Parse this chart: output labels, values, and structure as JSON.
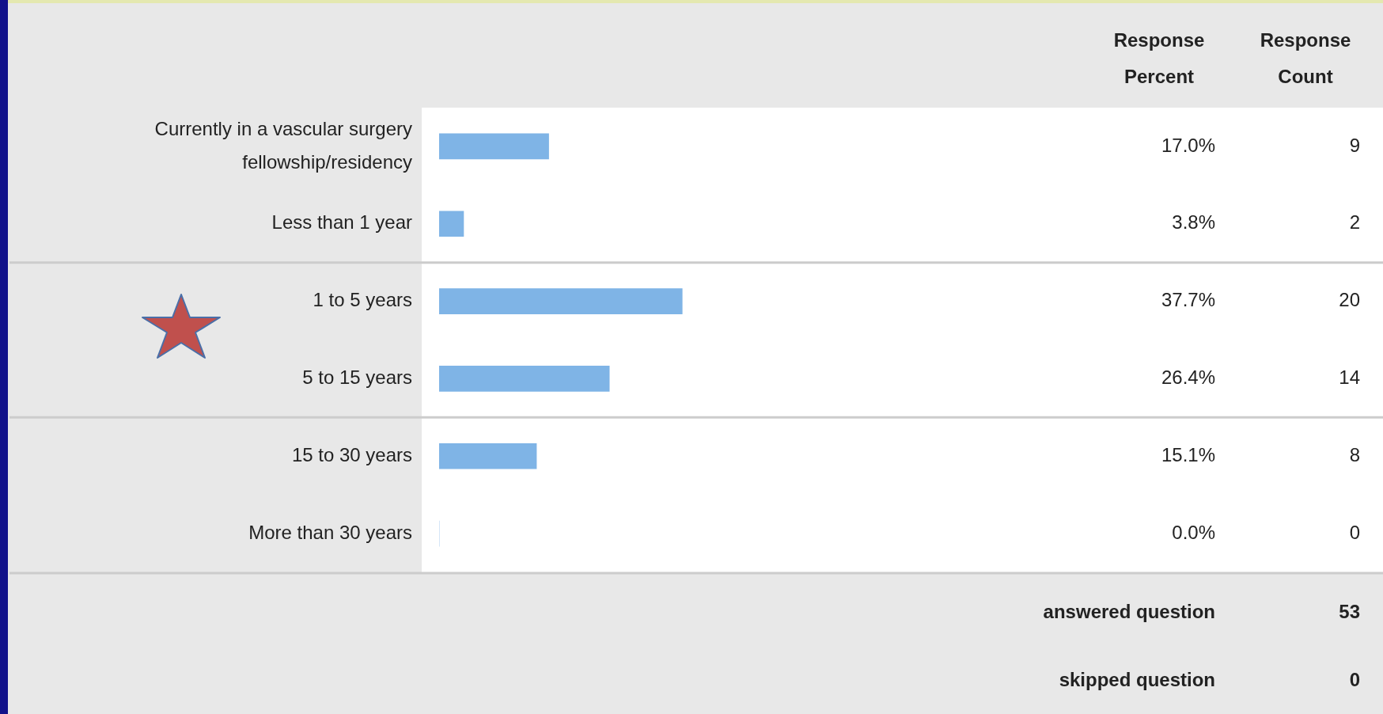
{
  "chart_data": {
    "type": "bar",
    "orientation": "horizontal",
    "categories": [
      "Currently in a vascular surgery fellowship/residency",
      "Less than 1 year",
      "1 to 5 years",
      "5 to 15 years",
      "15 to 30 years",
      "More than 30 years"
    ],
    "values": [
      17.0,
      3.8,
      37.7,
      26.4,
      15.1,
      0.0
    ],
    "value_labels": [
      "17.0%",
      "3.8%",
      "37.7%",
      "26.4%",
      "15.1%",
      "0.0%"
    ],
    "color": "#7fb4e6",
    "tick_labels": "y",
    "grid": false,
    "legend": false,
    "annotations": [
      "Response Percent",
      "Response Count",
      "9",
      "2",
      "20",
      "14",
      "8",
      "0",
      "answered question",
      "53",
      "skipped question",
      "0"
    ]
  }
}
